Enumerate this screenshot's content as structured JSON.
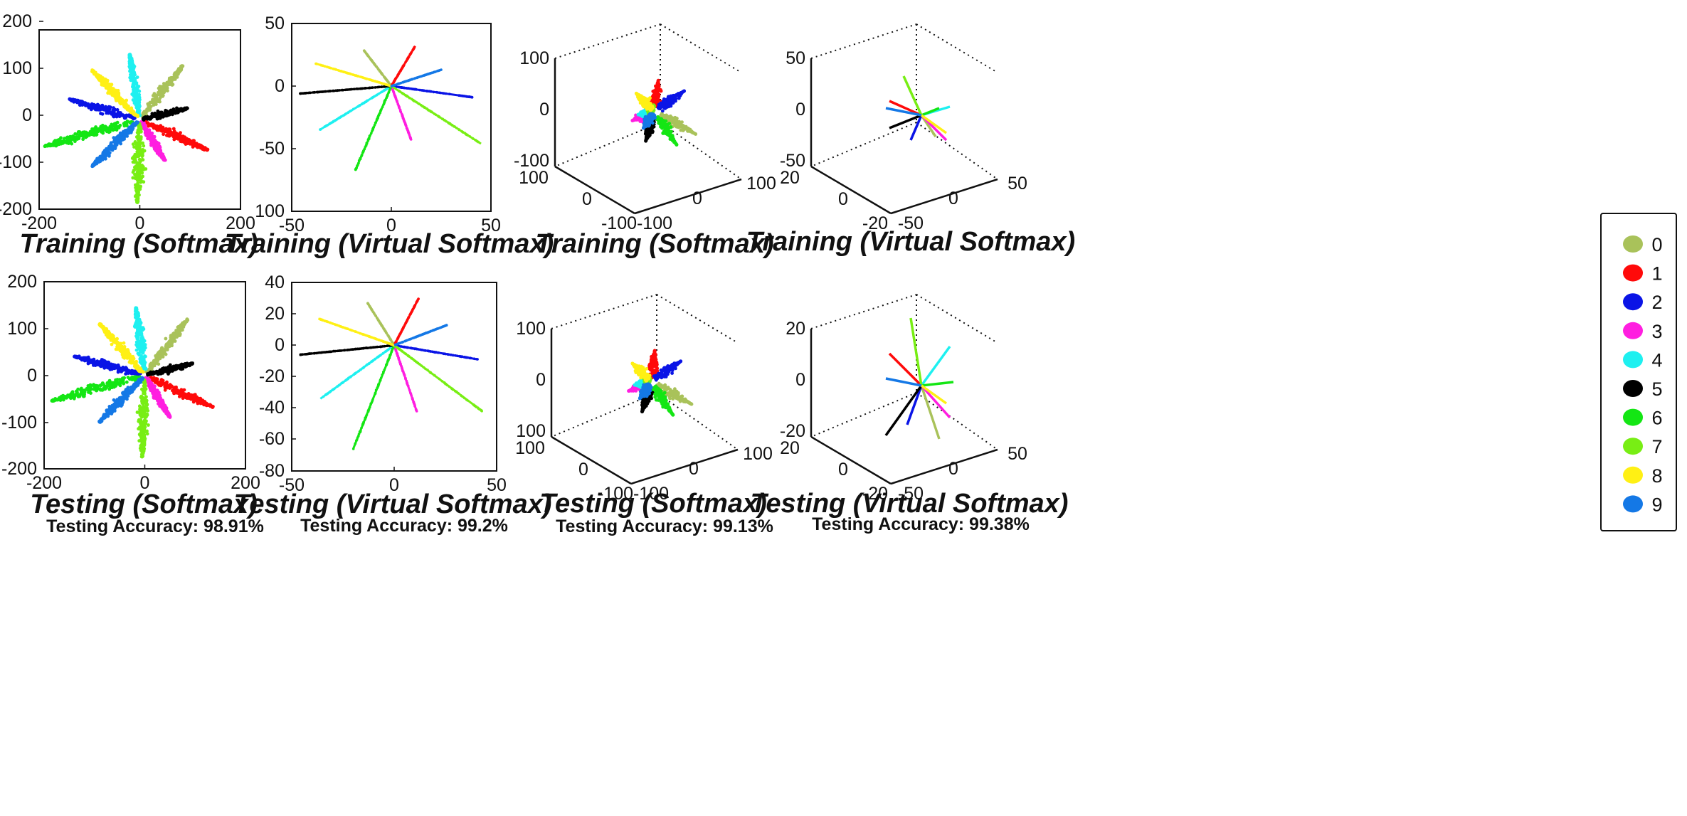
{
  "panels": [
    {
      "id": "p1",
      "kind": "2d",
      "title": "Training (Softmax)",
      "accuracy": "",
      "x_ticks": [
        "-200",
        "0",
        "200"
      ],
      "y_ticks": [
        "200",
        "100",
        "0",
        "-100",
        "-200"
      ],
      "xlim": [
        -200,
        200
      ],
      "ylim": [
        -200,
        200
      ]
    },
    {
      "id": "p2",
      "kind": "2d",
      "title": "Training (Virtual Softmax)",
      "accuracy": "",
      "x_ticks": [
        "-50",
        "0",
        "50"
      ],
      "y_ticks": [
        "50",
        "0",
        "-50",
        "100"
      ],
      "xlim": [
        -50,
        50
      ],
      "ylim": [
        -100,
        50
      ]
    },
    {
      "id": "p3",
      "kind": "3d",
      "title": "Training (Softmax)",
      "accuracy": "",
      "z_ticks": [
        "100",
        "0",
        "-100"
      ],
      "y_ticks": [
        "100",
        "0",
        "-100"
      ],
      "x_ticks": [
        "-100",
        "0",
        "100"
      ]
    },
    {
      "id": "p4",
      "kind": "3d",
      "title": "Training (Virtual Softmax)",
      "accuracy": "",
      "z_ticks": [
        "50",
        "0",
        "-50"
      ],
      "y_ticks": [
        "20",
        "0",
        "-20"
      ],
      "x_ticks": [
        "-50",
        "0",
        "50"
      ]
    },
    {
      "id": "p5",
      "kind": "2d",
      "title": "Testing (Softmax)",
      "accuracy": "Testing Accuracy: 98.91%",
      "x_ticks": [
        "-200",
        "0",
        "200"
      ],
      "y_ticks": [
        "200",
        "100",
        "0",
        "-100",
        "-200"
      ],
      "xlim": [
        -200,
        200
      ],
      "ylim": [
        -200,
        200
      ]
    },
    {
      "id": "p6",
      "kind": "2d",
      "title": "Testing (Virtual Softmax)",
      "accuracy": "Testing Accuracy: 99.2%",
      "x_ticks": [
        "-50",
        "0",
        "50"
      ],
      "y_ticks": [
        "40",
        "20",
        "0",
        "-20",
        "-40",
        "-60",
        "-80"
      ],
      "xlim": [
        -50,
        50
      ],
      "ylim": [
        -80,
        40
      ]
    },
    {
      "id": "p7",
      "kind": "3d",
      "title": "Testing (Softmax)",
      "accuracy": "Testing Accuracy: 99.13%",
      "z_ticks": [
        "100",
        "0",
        "100"
      ],
      "y_ticks": [
        "100",
        "0",
        "-100"
      ],
      "x_ticks": [
        "-100",
        "0",
        "100"
      ]
    },
    {
      "id": "p8",
      "kind": "3d",
      "title": "Testing (Virtual Softmax)",
      "accuracy": "Testing Accuracy: 99.38%",
      "z_ticks": [
        "20",
        "0",
        "-20"
      ],
      "y_ticks": [
        "20",
        "0",
        "-20"
      ],
      "x_ticks": [
        "-50",
        "0",
        "50"
      ]
    }
  ],
  "legend": {
    "entries": [
      {
        "label": "0",
        "color": "#a9c25a"
      },
      {
        "label": "1",
        "color": "#ff0a0a"
      },
      {
        "label": "2",
        "color": "#0a14e6"
      },
      {
        "label": "3",
        "color": "#ff1ee0"
      },
      {
        "label": "4",
        "color": "#1ef0f0"
      },
      {
        "label": "5",
        "color": "#000000"
      },
      {
        "label": "6",
        "color": "#14e614"
      },
      {
        "label": "7",
        "color": "#78ee14"
      },
      {
        "label": "8",
        "color": "#fff014"
      },
      {
        "label": "9",
        "color": "#1478e6"
      }
    ]
  },
  "chart_data": [
    {
      "type": "scatter",
      "title": "Training (Softmax)",
      "xlim": [
        -200,
        200
      ],
      "ylim": [
        -200,
        200
      ],
      "series": [
        {
          "name": "0",
          "values": [
            [
              0,
              0
            ],
            [
              85,
              120
            ]
          ]
        },
        {
          "name": "1",
          "values": [
            [
              0,
              0
            ],
            [
              135,
              -68
            ]
          ]
        },
        {
          "name": "2",
          "values": [
            [
              0,
              0
            ],
            [
              -140,
              45
            ]
          ]
        },
        {
          "name": "3",
          "values": [
            [
              0,
              0
            ],
            [
              50,
              -92
            ]
          ]
        },
        {
          "name": "4",
          "values": [
            [
              0,
              0
            ],
            [
              -20,
              145
            ]
          ]
        },
        {
          "name": "5",
          "values": [
            [
              0,
              0
            ],
            [
              95,
              25
            ]
          ]
        },
        {
          "name": "6",
          "values": [
            [
              0,
              0
            ],
            [
              -190,
              -60
            ]
          ]
        },
        {
          "name": "7",
          "values": [
            [
              0,
              0
            ],
            [
              -5,
              -185
            ]
          ]
        },
        {
          "name": "8",
          "values": [
            [
              0,
              0
            ],
            [
              -95,
              110
            ]
          ]
        },
        {
          "name": "9",
          "values": [
            [
              0,
              0
            ],
            [
              -95,
              -105
            ]
          ]
        }
      ]
    },
    {
      "type": "scatter",
      "title": "Training (Virtual Softmax)",
      "xlim": [
        -50,
        50
      ],
      "ylim": [
        -100,
        50
      ],
      "series": [
        {
          "name": "0",
          "values": [
            [
              0,
              0
            ],
            [
              -14,
              29
            ]
          ]
        },
        {
          "name": "1",
          "values": [
            [
              0,
              0
            ],
            [
              12,
              32
            ]
          ]
        },
        {
          "name": "2",
          "values": [
            [
              0,
              0
            ],
            [
              41,
              -9
            ]
          ]
        },
        {
          "name": "3",
          "values": [
            [
              0,
              0
            ],
            [
              10,
              -43
            ]
          ]
        },
        {
          "name": "4",
          "values": [
            [
              0,
              0
            ],
            [
              -36,
              -35
            ]
          ]
        },
        {
          "name": "5",
          "values": [
            [
              0,
              0
            ],
            [
              -46,
              -6
            ]
          ]
        },
        {
          "name": "6",
          "values": [
            [
              0,
              0
            ],
            [
              -18,
              -67
            ]
          ]
        },
        {
          "name": "7",
          "values": [
            [
              0,
              0
            ],
            [
              45,
              -46
            ]
          ]
        },
        {
          "name": "8",
          "values": [
            [
              0,
              0
            ],
            [
              -38,
              18
            ]
          ]
        },
        {
          "name": "9",
          "values": [
            [
              0,
              0
            ],
            [
              25,
              13
            ]
          ]
        }
      ]
    },
    {
      "type": "scatter",
      "title": "Training (Softmax)",
      "note": "3D"
    },
    {
      "type": "scatter",
      "title": "Training (Virtual Softmax)",
      "note": "3D"
    },
    {
      "type": "scatter",
      "title": "Testing (Softmax)",
      "xlim": [
        -200,
        200
      ],
      "ylim": [
        -200,
        200
      ],
      "series": [
        {
          "name": "0",
          "values": [
            [
              0,
              0
            ],
            [
              85,
              120
            ]
          ]
        },
        {
          "name": "1",
          "values": [
            [
              0,
              0
            ],
            [
              135,
              -68
            ]
          ]
        },
        {
          "name": "2",
          "values": [
            [
              0,
              0
            ],
            [
              -140,
              40
            ]
          ]
        },
        {
          "name": "3",
          "values": [
            [
              0,
              0
            ],
            [
              50,
              -90
            ]
          ]
        },
        {
          "name": "4",
          "values": [
            [
              0,
              0
            ],
            [
              -18,
              145
            ]
          ]
        },
        {
          "name": "5",
          "values": [
            [
              0,
              0
            ],
            [
              95,
              25
            ]
          ]
        },
        {
          "name": "6",
          "values": [
            [
              0,
              0
            ],
            [
              -185,
              -55
            ]
          ]
        },
        {
          "name": "7",
          "values": [
            [
              0,
              0
            ],
            [
              -5,
              -175
            ]
          ]
        },
        {
          "name": "8",
          "values": [
            [
              0,
              0
            ],
            [
              -90,
              110
            ]
          ]
        },
        {
          "name": "9",
          "values": [
            [
              0,
              0
            ],
            [
              -90,
              -100
            ]
          ]
        }
      ]
    },
    {
      "type": "scatter",
      "title": "Testing (Virtual Softmax)",
      "xlim": [
        -50,
        50
      ],
      "ylim": [
        -80,
        40
      ],
      "series": [
        {
          "name": "0",
          "values": [
            [
              0,
              0
            ],
            [
              -13,
              27
            ]
          ]
        },
        {
          "name": "1",
          "values": [
            [
              0,
              0
            ],
            [
              12,
              30
            ]
          ]
        },
        {
          "name": "2",
          "values": [
            [
              0,
              0
            ],
            [
              41,
              -9
            ]
          ]
        },
        {
          "name": "3",
          "values": [
            [
              0,
              0
            ],
            [
              11,
              -42
            ]
          ]
        },
        {
          "name": "4",
          "values": [
            [
              0,
              0
            ],
            [
              -36,
              -34
            ]
          ]
        },
        {
          "name": "5",
          "values": [
            [
              0,
              0
            ],
            [
              -46,
              -6
            ]
          ]
        },
        {
          "name": "6",
          "values": [
            [
              0,
              0
            ],
            [
              -20,
              -66
            ]
          ]
        },
        {
          "name": "7",
          "values": [
            [
              0,
              0
            ],
            [
              43,
              -42
            ]
          ]
        },
        {
          "name": "8",
          "values": [
            [
              0,
              0
            ],
            [
              -37,
              17
            ]
          ]
        },
        {
          "name": "9",
          "values": [
            [
              0,
              0
            ],
            [
              26,
              13
            ]
          ]
        }
      ]
    },
    {
      "type": "scatter",
      "title": "Testing (Softmax)",
      "note": "3D"
    },
    {
      "type": "scatter",
      "title": "Testing (Virtual Softmax)",
      "note": "3D"
    }
  ]
}
